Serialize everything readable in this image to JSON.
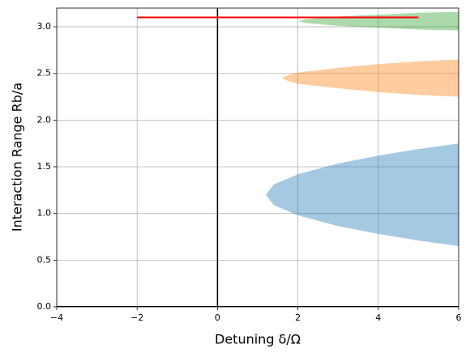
{
  "chart_data": {
    "type": "area",
    "xlabel": "Detuning δ/Ω",
    "ylabel": "Interaction Range Rb/a",
    "xlim": [
      -4,
      6
    ],
    "ylim": [
      0,
      3.2
    ],
    "xticks": [
      {
        "value": -4,
        "label": "−4"
      },
      {
        "value": -2,
        "label": "−2"
      },
      0,
      2,
      4,
      6
    ],
    "yticks": [
      {
        "value": 0,
        "label": "0.0"
      },
      0.5,
      {
        "value": 1,
        "label": "1.0"
      },
      1.5,
      {
        "value": 2,
        "label": "2.0"
      },
      2.5,
      {
        "value": 3,
        "label": "3.0"
      }
    ],
    "grid": true,
    "axvline": 0,
    "axhline": 0,
    "series": [
      {
        "color": "#1f77b4",
        "x": [
          1.2,
          1.4,
          2,
          3,
          4,
          5,
          6
        ],
        "upper": [
          1.2,
          1.31,
          1.42,
          1.535,
          1.62,
          1.69,
          1.75
        ],
        "lower": [
          1.2,
          1.09,
          0.98,
          0.865,
          0.78,
          0.71,
          0.65
        ]
      },
      {
        "color": "#ff7f0e",
        "x": [
          1.6,
          1.8,
          2,
          3,
          4,
          5,
          6
        ],
        "upper": [
          2.45,
          2.49,
          2.51,
          2.56,
          2.6,
          2.63,
          2.65
        ],
        "lower": [
          2.45,
          2.41,
          2.39,
          2.34,
          2.3,
          2.27,
          2.25
        ]
      },
      {
        "color": "#2ca02c",
        "x": [
          2,
          2.2,
          3,
          4,
          5,
          6
        ],
        "upper": [
          3.06,
          3.08,
          3.11,
          3.13,
          3.15,
          3.16
        ],
        "lower": [
          3.06,
          3.04,
          3.01,
          2.99,
          2.97,
          2.96
        ]
      }
    ],
    "lines": [
      {
        "color": "#ff0000",
        "x": [
          -2,
          5
        ],
        "values": [
          3.1,
          3.1
        ]
      }
    ]
  }
}
